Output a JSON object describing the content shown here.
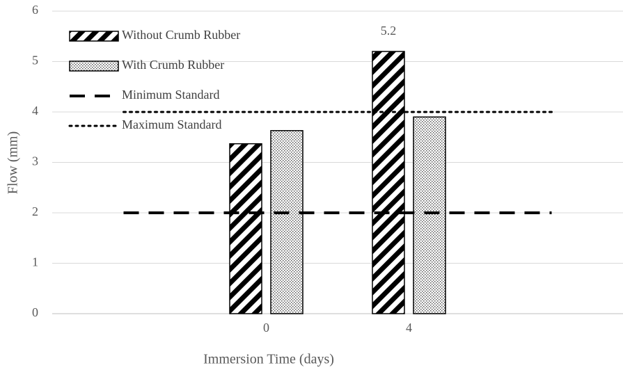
{
  "chart_data": {
    "type": "bar",
    "x_label": "Immersion Time (days)",
    "y_label": "Flow (mm)",
    "categories": [
      null,
      "0",
      "4",
      null
    ],
    "ylim": [
      0,
      6
    ],
    "yticks": [
      0,
      1,
      2,
      3,
      4,
      5,
      6
    ],
    "grid": true,
    "legend": "upper left",
    "series": [
      {
        "name": "Without Crumb Rubber",
        "type": "bar",
        "pattern": "hatch",
        "color": "#000000",
        "values": [
          null,
          3.37,
          5.2,
          null
        ],
        "value_labels": [
          null,
          null,
          "5.2",
          null
        ]
      },
      {
        "name": "With Crumb Rubber",
        "type": "bar",
        "pattern": "dots",
        "color": "#000000",
        "values": [
          null,
          3.63,
          3.9,
          null
        ]
      },
      {
        "name": "Minimum Standard",
        "type": "line",
        "style": "dashed",
        "color": "#000000",
        "values": [
          2,
          2,
          2,
          2
        ]
      },
      {
        "name": "Maximum Standard",
        "type": "line",
        "style": "dotted",
        "color": "#000000",
        "values": [
          4,
          4,
          4,
          4
        ]
      }
    ]
  }
}
